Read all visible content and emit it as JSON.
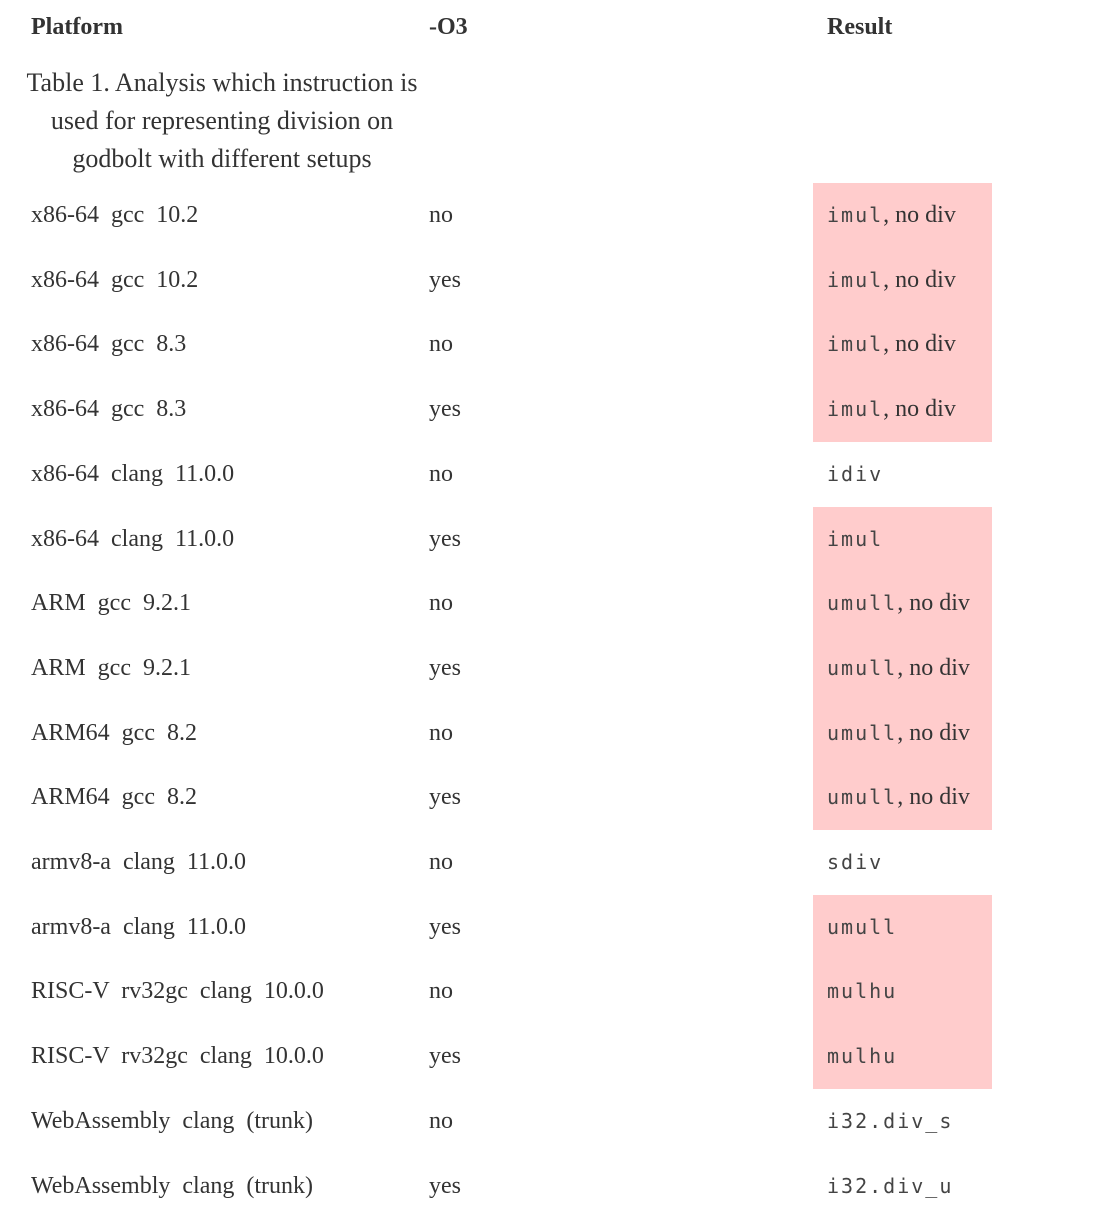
{
  "headers": {
    "platform": "Platform",
    "o3": "-O3",
    "result": "Result"
  },
  "caption": "Table 1. Analysis which instruction is used for representing division on godbolt with different setups",
  "highlight_color": "#ffcccc",
  "rows": [
    {
      "platform": "x86-64 gcc 10.2",
      "o3": "no",
      "code": "imul",
      "note": ", no div",
      "highlighted": true
    },
    {
      "platform": "x86-64 gcc 10.2",
      "o3": "yes",
      "code": "imul",
      "note": ", no div",
      "highlighted": true
    },
    {
      "platform": "x86-64 gcc 8.3",
      "o3": "no",
      "code": "imul",
      "note": ", no div",
      "highlighted": true
    },
    {
      "platform": "x86-64 gcc 8.3",
      "o3": "yes",
      "code": "imul",
      "note": ", no div",
      "highlighted": true
    },
    {
      "platform": "x86-64 clang 11.0.0",
      "o3": "no",
      "code": "idiv",
      "note": "",
      "highlighted": false
    },
    {
      "platform": "x86-64 clang 11.0.0",
      "o3": "yes",
      "code": "imul",
      "note": "",
      "highlighted": true
    },
    {
      "platform": "ARM gcc 9.2.1",
      "o3": "no",
      "code": "umull",
      "note": ", no div",
      "highlighted": true
    },
    {
      "platform": "ARM gcc 9.2.1",
      "o3": "yes",
      "code": "umull",
      "note": ", no div",
      "highlighted": true
    },
    {
      "platform": "ARM64 gcc 8.2",
      "o3": "no",
      "code": "umull",
      "note": ", no div",
      "highlighted": true
    },
    {
      "platform": "ARM64 gcc 8.2",
      "o3": "yes",
      "code": "umull",
      "note": ", no div",
      "highlighted": true
    },
    {
      "platform": "armv8-a clang 11.0.0",
      "o3": "no",
      "code": "sdiv",
      "note": "",
      "highlighted": false
    },
    {
      "platform": "armv8-a clang 11.0.0",
      "o3": "yes",
      "code": "umull",
      "note": "",
      "highlighted": true
    },
    {
      "platform": "RISC-V rv32gc clang 10.0.0",
      "o3": "no",
      "code": "mulhu",
      "note": "",
      "highlighted": true
    },
    {
      "platform": "RISC-V rv32gc clang 10.0.0",
      "o3": "yes",
      "code": "mulhu",
      "note": "",
      "highlighted": true
    },
    {
      "platform": "WebAssembly clang (trunk)",
      "o3": "no",
      "code": "i32.div_s",
      "note": "",
      "highlighted": false
    },
    {
      "platform": "WebAssembly clang (trunk)",
      "o3": "yes",
      "code": "i32.div_u",
      "note": "",
      "highlighted": false
    }
  ]
}
